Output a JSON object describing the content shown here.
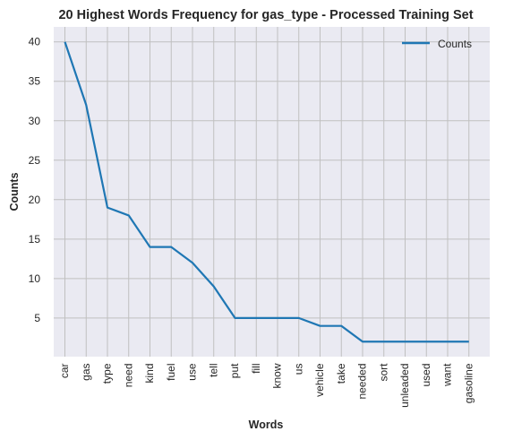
{
  "chart_data": {
    "type": "line",
    "title": "20 Highest Words Frequency for gas_type - Processed Training Set",
    "xlabel": "Words",
    "ylabel": "Counts",
    "categories": [
      "car",
      "gas",
      "type",
      "need",
      "kind",
      "fuel",
      "use",
      "tell",
      "put",
      "fill",
      "know",
      "us",
      "vehicle",
      "take",
      "needed",
      "sort",
      "unleaded",
      "used",
      "want",
      "gasoline"
    ],
    "series": [
      {
        "name": "Counts",
        "values": [
          40,
          32,
          19,
          18,
          14,
          14,
          12,
          9,
          5,
          5,
          5,
          5,
          4,
          4,
          2,
          2,
          2,
          2,
          2,
          2
        ]
      }
    ],
    "ylim": [
      0.1,
      41.9
    ],
    "yticks": [
      5,
      10,
      15,
      20,
      25,
      30,
      35,
      40
    ],
    "grid": true,
    "legend_position": "top-right",
    "colors": {
      "line": "#1f77b4",
      "plot_background": "#eaeaf2",
      "grid": "#c0c0c0"
    }
  }
}
